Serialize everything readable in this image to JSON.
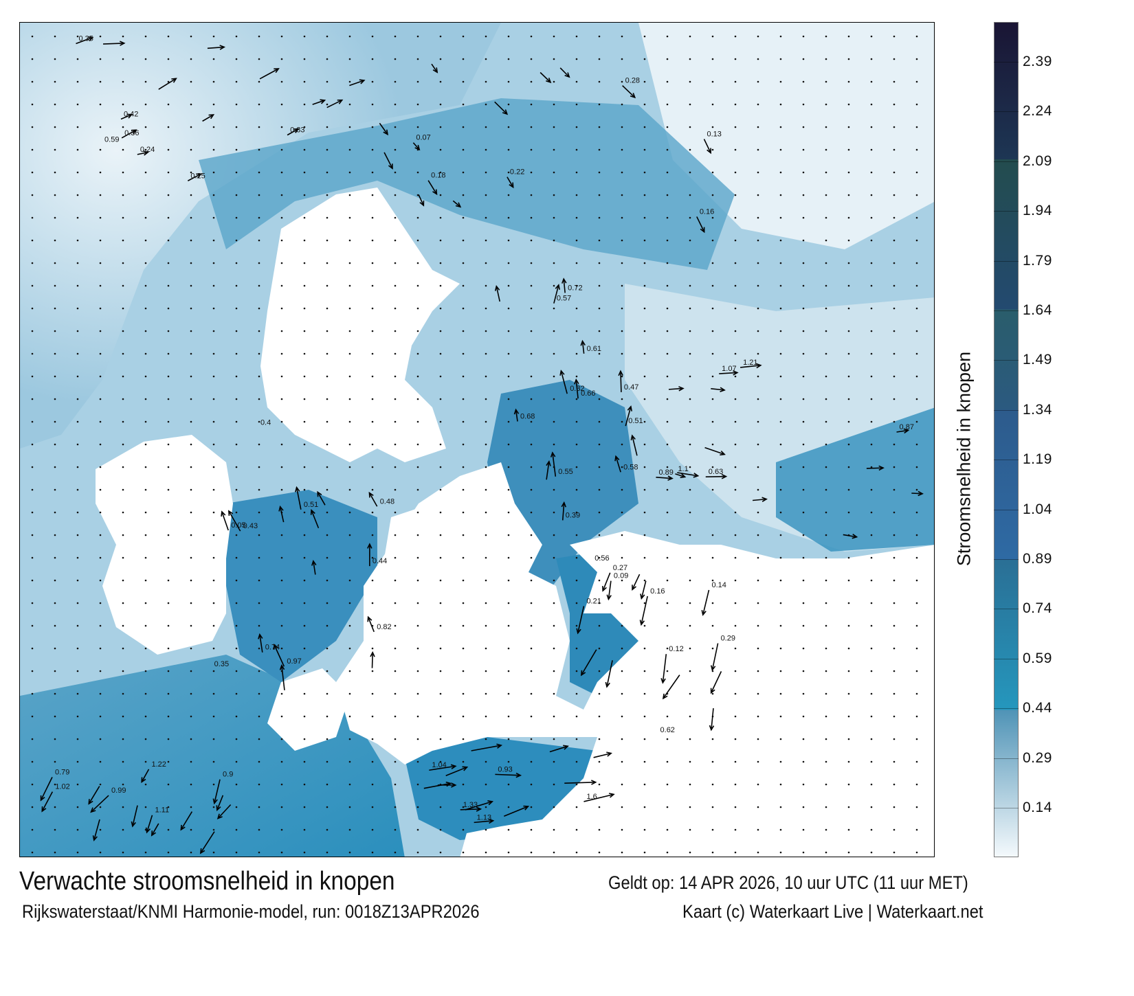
{
  "title": "Verwachte stroomsnelheid in knopen",
  "valid_time": "Geldt op: 14 APR 2026, 10 uur UTC (11 uur MET)",
  "model_info": "Rijkswaterstaat/KNMI Harmonie-model, run: 0018Z13APR2026",
  "credit": "Kaart (c) Waterkaart Live | Waterkaart.net",
  "colorbar": {
    "label": "Stroomsnelheid in knopen",
    "ticks": [
      "2.39",
      "2.24",
      "2.09",
      "1.94",
      "1.79",
      "1.64",
      "1.49",
      "1.34",
      "1.19",
      "1.04",
      "0.89",
      "0.74",
      "0.59",
      "0.44",
      "0.29",
      "0.14"
    ],
    "range": [
      0,
      2.5
    ],
    "bands": [
      {
        "from": 0.0,
        "to": 0.44,
        "color_start": "#f4f9fc",
        "color_end": "#4f93b6"
      },
      {
        "from": 0.44,
        "to": 0.89,
        "color_start": "#2597bd",
        "color_end": "#2a6f95"
      },
      {
        "from": 0.89,
        "to": 1.34,
        "color_start": "#2e6aa4",
        "color_end": "#2d5b8c"
      },
      {
        "from": 1.34,
        "to": 1.64,
        "color_start": "#2b5a80",
        "color_end": "#2a5d6b"
      },
      {
        "from": 1.64,
        "to": 2.09,
        "color_start": "#234a70",
        "color_end": "#234c4e"
      },
      {
        "from": 2.09,
        "to": 2.5,
        "color_start": "#1d3654",
        "color_end": "#1a1534"
      }
    ]
  },
  "colors": {
    "land": "#ffffff",
    "sea_low": "#cfe4ef",
    "sea_mid": "#6fb0d0",
    "sea_high": "#2a78a8",
    "arrow": "#000000"
  },
  "speed_labels": [
    "0.24",
    "0.36",
    "0.25",
    "0.42",
    "0.33",
    "0.35",
    "0.28",
    "0.16",
    "0.22",
    "0.13",
    "0.18",
    "0.07",
    "0.55",
    "0.61",
    "0.66",
    "0.32",
    "0.39",
    "0.47",
    "0.51",
    "0.57",
    "0.58",
    "0.68",
    "0.72",
    "0.63",
    "0.87",
    "0.89",
    "1.1",
    "1.07",
    "1.21",
    "1.11",
    "0.79",
    "0.99",
    "1.22",
    "1.02",
    "0.9",
    "1.13",
    "1.04",
    "0.93",
    "1.6",
    "1.33",
    "0.97",
    "0.82",
    "0.74",
    "0.43",
    "0.48",
    "0.51",
    "0.44",
    "0.05",
    "0.16",
    "0.21",
    "0.14",
    "0.29",
    "0.09",
    "0.27",
    "0.12",
    "0.4",
    "0.59",
    "0.56",
    "0.35",
    "0.62"
  ]
}
